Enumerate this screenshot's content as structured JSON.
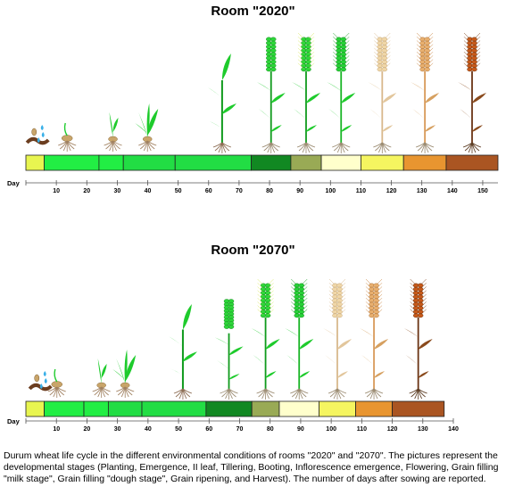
{
  "rooms": [
    {
      "title": "Room \"2020\"",
      "day_label": "Day",
      "axis_ticks": [
        10,
        20,
        30,
        40,
        50,
        60,
        70,
        80,
        90,
        100,
        110,
        120,
        130,
        140,
        150
      ],
      "axis_max": 155,
      "stages": [
        {
          "stage": "Planting",
          "start": 0,
          "end": 6,
          "color": "#e8f550"
        },
        {
          "stage": "Emergence",
          "start": 6,
          "end": 24,
          "color": "#22ee44"
        },
        {
          "stage": "II leaf",
          "start": 24,
          "end": 32,
          "color": "#22ee44"
        },
        {
          "stage": "Tillering",
          "start": 32,
          "end": 49,
          "color": "#22dd44"
        },
        {
          "stage": "Booting",
          "start": 49,
          "end": 74,
          "color": "#22dd44"
        },
        {
          "stage": "Inflorescence emergence",
          "start": 74,
          "end": 87,
          "color": "#118822"
        },
        {
          "stage": "Flowering",
          "start": 87,
          "end": 97,
          "color": "#99aa55"
        },
        {
          "stage": "Grain filling milk stage",
          "start": 97,
          "end": 110,
          "color": "#ffffcc"
        },
        {
          "stage": "Grain filling dough stage",
          "start": 110,
          "end": 124,
          "color": "#f5f560"
        },
        {
          "stage": "Grain ripening",
          "start": 124,
          "end": 138,
          "color": "#e89530"
        },
        {
          "stage": "Harvest",
          "start": 138,
          "end": 155,
          "color": "#aa5522"
        }
      ]
    },
    {
      "title": "Room \"2070\"",
      "day_label": "Day",
      "axis_ticks": [
        10,
        20,
        30,
        40,
        50,
        60,
        70,
        80,
        90,
        100,
        110,
        120,
        130,
        140
      ],
      "axis_max": 140,
      "stages": [
        {
          "stage": "Planting",
          "start": 0,
          "end": 6,
          "color": "#e8f550"
        },
        {
          "stage": "Emergence",
          "start": 6,
          "end": 19,
          "color": "#22ee44"
        },
        {
          "stage": "II leaf",
          "start": 19,
          "end": 27,
          "color": "#22ee44"
        },
        {
          "stage": "Tillering",
          "start": 27,
          "end": 38,
          "color": "#22dd44"
        },
        {
          "stage": "Booting",
          "start": 38,
          "end": 59,
          "color": "#22dd44"
        },
        {
          "stage": "Inflorescence emergence",
          "start": 59,
          "end": 74,
          "color": "#118822"
        },
        {
          "stage": "Flowering",
          "start": 74,
          "end": 83,
          "color": "#99aa55"
        },
        {
          "stage": "Grain filling milk stage",
          "start": 83,
          "end": 96,
          "color": "#ffffcc"
        },
        {
          "stage": "Grain filling dough stage",
          "start": 96,
          "end": 108,
          "color": "#f5f560"
        },
        {
          "stage": "Grain ripening",
          "start": 108,
          "end": 120,
          "color": "#e89530"
        },
        {
          "stage": "Harvest",
          "start": 120,
          "end": 137,
          "color": "#aa5522"
        }
      ]
    }
  ],
  "plant_stage_icons": [
    "seed-icon",
    "sprout-icon",
    "two-leaf-icon",
    "tillering-icon",
    "booting-icon",
    "green-ear-icon",
    "flowering-ear-icon",
    "milk-ear-icon",
    "dough-ear-icon",
    "ripening-ear-icon",
    "harvest-ear-icon"
  ],
  "caption": "Durum wheat life cycle in the different environmental conditions of rooms \"2020\" and \"2070\". The pictures represent the developmental stages (Planting, Emergence, II leaf, Tillering, Booting, Inflorescence emergence, Flowering, Grain filling \"milk stage\", Grain filling \"dough stage\", Grain ripening, and Harvest). The number of days after sowing are reported."
}
